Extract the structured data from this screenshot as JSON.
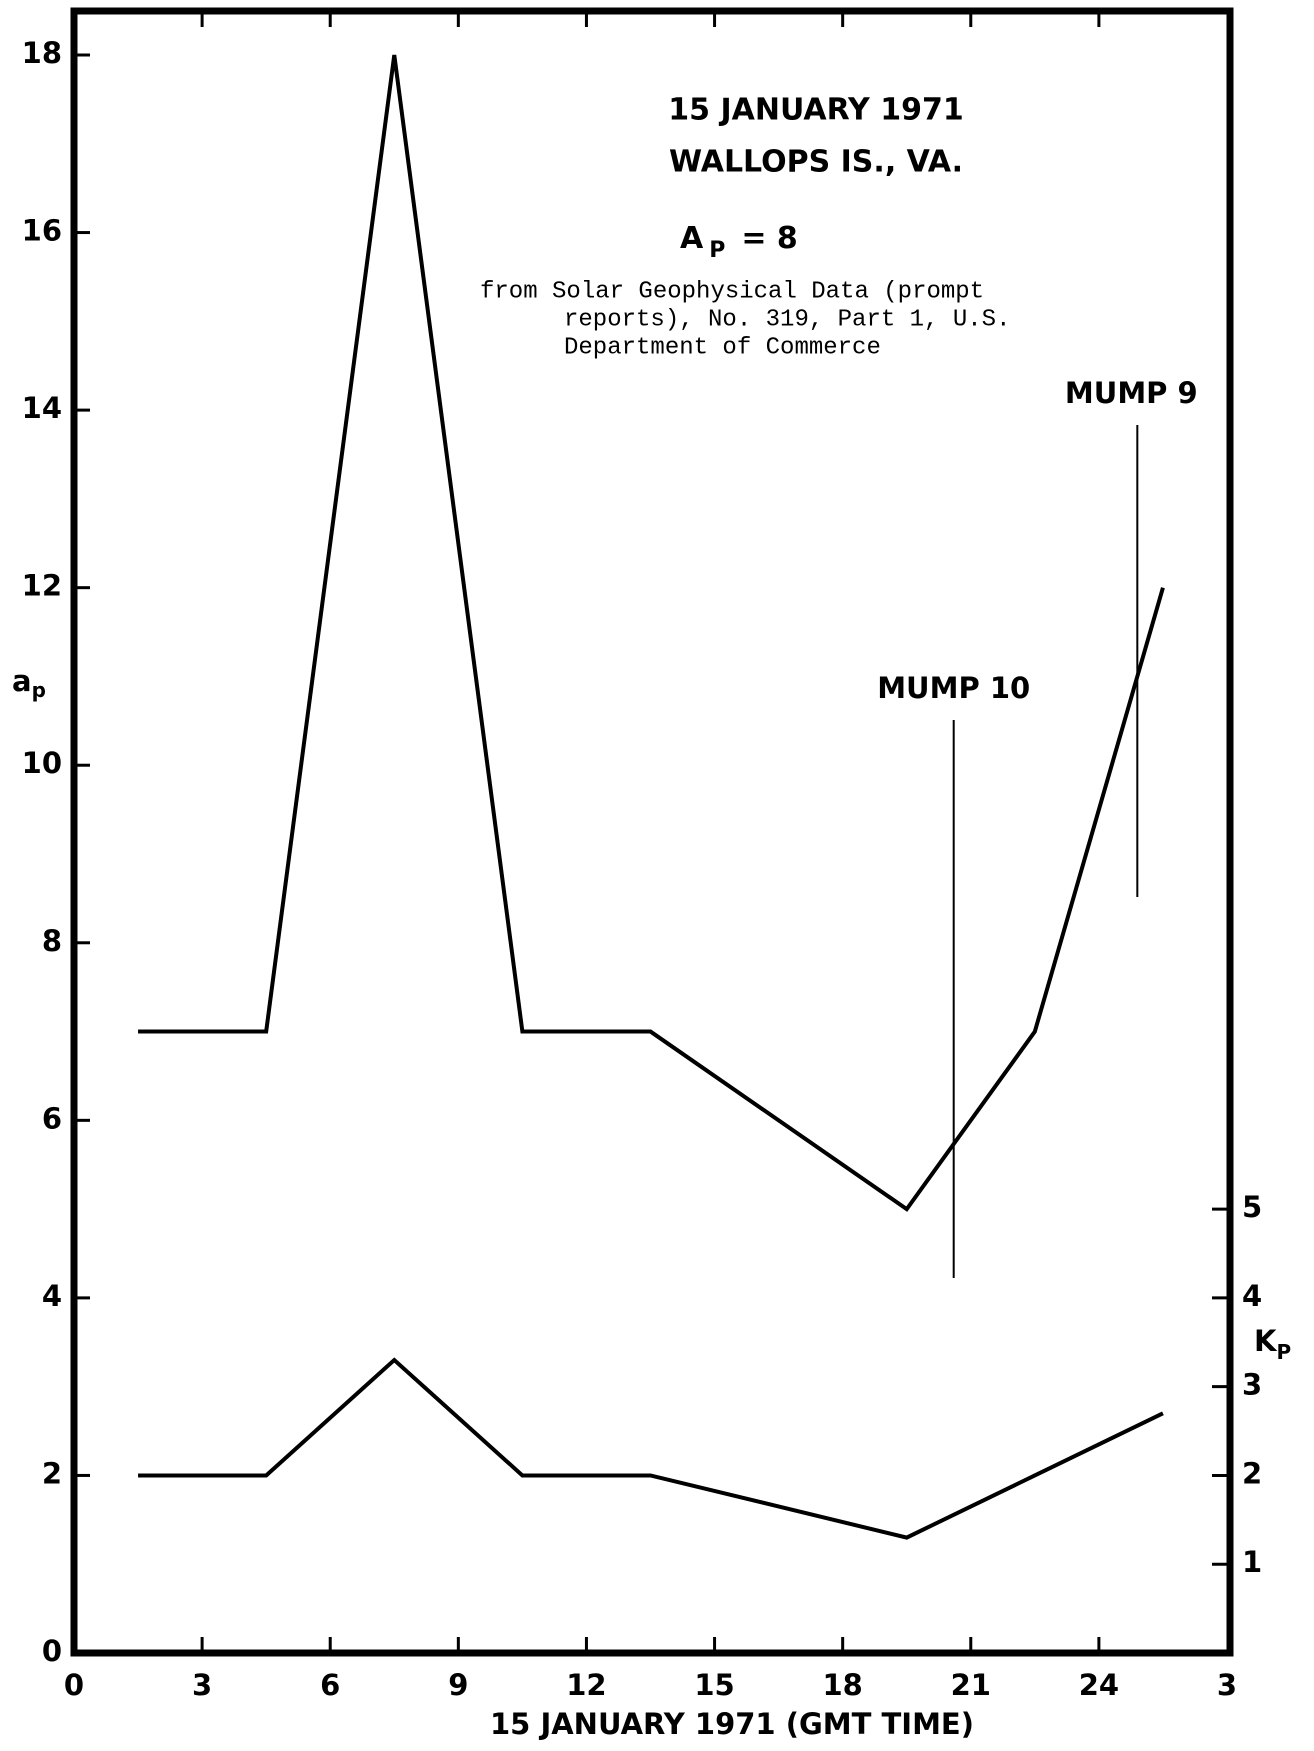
{
  "chart_data": {
    "type": "line",
    "title": "15 JANUARY 1971",
    "subtitle": "WALLOPS IS., VA.",
    "index_label": [
      "A",
      "P",
      "= 8"
    ],
    "source": [
      "from Solar Geophysical Data (prompt",
      "reports), No. 319, Part 1, U.S.",
      "Department of Commerce"
    ],
    "xlabel": "15 JANUARY 1971 (GMT TIME)",
    "ylabel": [
      "a",
      "p"
    ],
    "y2label": [
      "K",
      "P"
    ],
    "x": [
      1.5,
      4.5,
      7.5,
      10.5,
      13.5,
      19.5,
      22.5,
      25.5
    ],
    "series": [
      {
        "name": "ap",
        "color": "#000000",
        "values": [
          7,
          7,
          18,
          7,
          7,
          5,
          7,
          12
        ]
      },
      {
        "name": "Kp",
        "color": "#000000",
        "axis": "y2",
        "values": [
          2,
          2,
          3.3,
          2,
          2,
          1.3,
          2,
          2.7
        ]
      }
    ],
    "annotations": [
      {
        "text": "MUMP 10",
        "x": 20.6
      },
      {
        "text": "MUMP 9",
        "x": 24.9
      }
    ],
    "xlim": [
      0,
      27
    ],
    "xticks": [
      0,
      3,
      6,
      9,
      12,
      15,
      18,
      21,
      24,
      {
        "value": 27,
        "label": "3"
      }
    ],
    "ylim": [
      0,
      18
    ],
    "yticks": [
      0,
      2,
      4,
      6,
      8,
      10,
      12,
      14,
      16,
      18
    ],
    "y2lim": [
      0,
      18
    ],
    "y2ticks": [
      1,
      2,
      3,
      4,
      5
    ]
  }
}
